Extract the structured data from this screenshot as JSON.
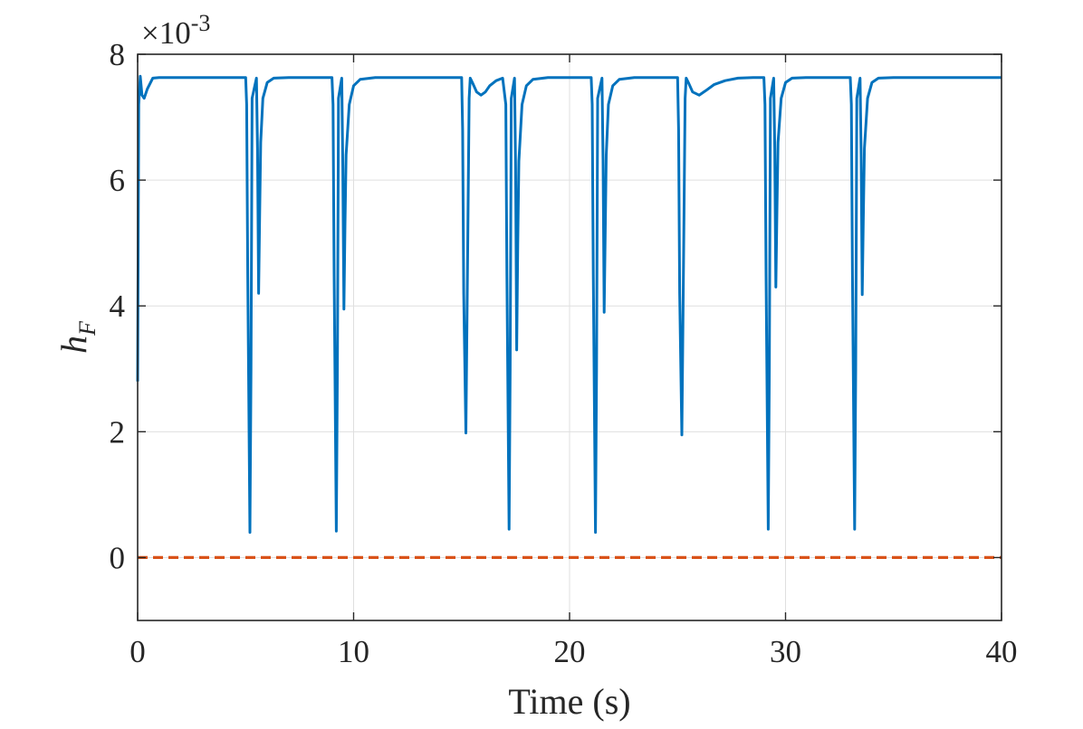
{
  "chart_data": {
    "type": "line",
    "title": "",
    "xlabel": "Time (s)",
    "ylabel": {
      "base": "h",
      "subscript": "F"
    },
    "xlim": [
      0,
      40
    ],
    "ylim": [
      -1,
      8
    ],
    "y_exponent_label": {
      "base": "×10",
      "power": "-3"
    },
    "x_ticks": [
      0,
      10,
      20,
      30,
      40
    ],
    "x_tick_labels": [
      "0",
      "10",
      "20",
      "30",
      "40"
    ],
    "y_ticks": [
      0,
      2,
      4,
      6,
      8
    ],
    "y_tick_labels": [
      "0",
      "2",
      "4",
      "6",
      "8"
    ],
    "grid": true,
    "box": true,
    "series": [
      {
        "style": "solid",
        "color": "#0072BD",
        "x": [
          0.0,
          0.05,
          0.12,
          0.2,
          0.3,
          0.45,
          0.7,
          1.0,
          2.0,
          3.0,
          4.0,
          5.0,
          5.05,
          5.1,
          5.2,
          5.25,
          5.3,
          5.5,
          5.55,
          5.6,
          5.65,
          5.7,
          5.8,
          6.0,
          6.3,
          7.0,
          8.0,
          9.0,
          9.05,
          9.1,
          9.2,
          9.25,
          9.3,
          9.45,
          9.5,
          9.55,
          9.6,
          9.65,
          9.8,
          10.0,
          10.3,
          11.0,
          12.0,
          13.0,
          14.0,
          15.0,
          15.05,
          15.1,
          15.2,
          15.3,
          15.35,
          15.4,
          15.5,
          15.7,
          15.9,
          16.1,
          16.3,
          16.6,
          16.9,
          17.05,
          17.1,
          17.2,
          17.25,
          17.3,
          17.45,
          17.5,
          17.55,
          17.6,
          17.65,
          17.8,
          18.0,
          18.3,
          19.0,
          20.0,
          21.0,
          21.05,
          21.1,
          21.2,
          21.25,
          21.3,
          21.5,
          21.55,
          21.6,
          21.65,
          21.7,
          21.8,
          22.0,
          22.3,
          23.0,
          24.0,
          25.0,
          25.05,
          25.1,
          25.2,
          25.3,
          25.35,
          25.4,
          25.5,
          25.7,
          26.0,
          26.3,
          26.7,
          27.2,
          27.8,
          28.5,
          29.0,
          29.05,
          29.1,
          29.2,
          29.25,
          29.3,
          29.45,
          29.5,
          29.55,
          29.6,
          29.65,
          29.8,
          30.0,
          30.3,
          31.0,
          32.0,
          33.0,
          33.05,
          33.1,
          33.2,
          33.25,
          33.3,
          33.45,
          33.5,
          33.55,
          33.6,
          33.65,
          33.8,
          34.0,
          34.3,
          35.0,
          36.0,
          37.0,
          38.0,
          39.0,
          40.0
        ],
        "y": [
          2.8,
          7.2,
          7.65,
          7.35,
          7.3,
          7.45,
          7.62,
          7.63,
          7.63,
          7.63,
          7.63,
          7.63,
          7.2,
          4.5,
          0.4,
          3.0,
          7.3,
          7.62,
          6.5,
          4.2,
          5.5,
          6.6,
          7.3,
          7.55,
          7.62,
          7.63,
          7.63,
          7.63,
          7.2,
          4.5,
          0.42,
          3.0,
          7.3,
          7.62,
          6.2,
          3.95,
          5.3,
          6.4,
          7.2,
          7.5,
          7.6,
          7.63,
          7.63,
          7.63,
          7.63,
          7.63,
          6.8,
          4.2,
          1.98,
          5.5,
          7.3,
          7.62,
          7.55,
          7.4,
          7.35,
          7.4,
          7.5,
          7.58,
          7.62,
          7.2,
          4.5,
          0.45,
          3.0,
          7.3,
          7.62,
          6.2,
          3.3,
          5.0,
          6.3,
          7.2,
          7.5,
          7.6,
          7.63,
          7.63,
          7.63,
          7.2,
          4.5,
          0.4,
          3.0,
          7.3,
          7.62,
          6.3,
          3.9,
          5.2,
          6.4,
          7.2,
          7.5,
          7.6,
          7.63,
          7.63,
          7.63,
          6.8,
          4.2,
          1.95,
          5.5,
          7.3,
          7.62,
          7.55,
          7.4,
          7.35,
          7.42,
          7.52,
          7.58,
          7.62,
          7.63,
          7.63,
          7.2,
          4.5,
          0.45,
          3.0,
          7.3,
          7.62,
          6.5,
          4.3,
          5.5,
          6.6,
          7.3,
          7.55,
          7.62,
          7.63,
          7.63,
          7.63,
          7.2,
          4.5,
          0.45,
          3.0,
          7.3,
          7.62,
          6.4,
          4.18,
          5.4,
          6.5,
          7.3,
          7.55,
          7.62,
          7.63,
          7.63,
          7.63,
          7.63,
          7.63,
          7.63
        ]
      },
      {
        "style": "dashed",
        "color": "#D95319",
        "x": [
          0,
          40
        ],
        "y": [
          0,
          0
        ]
      }
    ]
  }
}
